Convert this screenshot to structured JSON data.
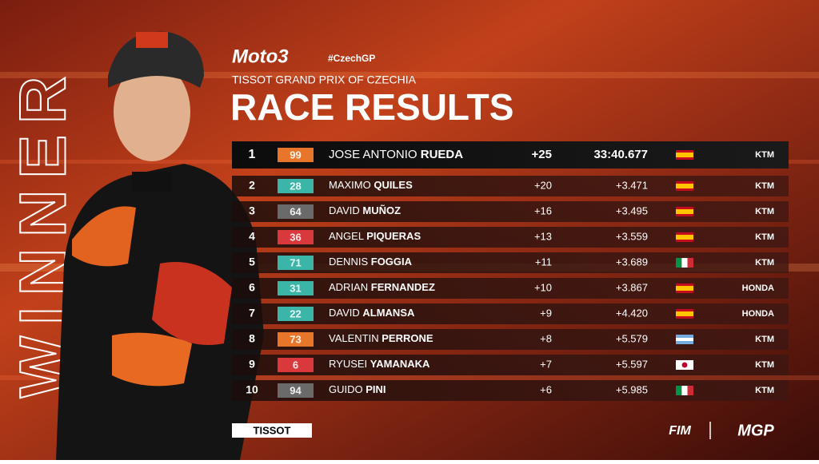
{
  "header": {
    "brand": "Moto3",
    "hashtag": "#CzechGP",
    "subtitle": "TISSOT GRAND PRIX OF CZECHIA",
    "title": "RACE RESULTS"
  },
  "side_label": "WINNER",
  "table": {
    "rows": [
      [
        "1",
        "99",
        "JOSE ANTONIO",
        "RUEDA",
        "+25",
        "33:40.677",
        "KTM"
      ],
      [
        "2",
        "28",
        "MAXIMO",
        "QUILES",
        "+20",
        "+3.471",
        "KTM"
      ],
      [
        "3",
        "64",
        "DAVID",
        "MUÑOZ",
        "+16",
        "+3.495",
        "KTM"
      ],
      [
        "4",
        "36",
        "ANGEL",
        "PIQUERAS",
        "+13",
        "+3.559",
        "KTM"
      ],
      [
        "5",
        "71",
        "DENNIS",
        "FOGGIA",
        "+11",
        "+3.689",
        "KTM"
      ],
      [
        "6",
        "31",
        "ADRIAN",
        "FERNANDEZ",
        "+10",
        "+3.867",
        "HONDA"
      ],
      [
        "7",
        "22",
        "DAVID",
        "ALMANSA",
        "+9",
        "+4.420",
        "HONDA"
      ],
      [
        "8",
        "73",
        "VALENTIN",
        "PERRONE",
        "+8",
        "+5.579",
        "KTM"
      ],
      [
        "9",
        "6",
        "RYUSEI",
        "YAMANAKA",
        "+7",
        "+5.597",
        "KTM"
      ],
      [
        "10",
        "94",
        "GUIDO",
        "PINI",
        "+6",
        "+5.985",
        "KTM"
      ]
    ]
  },
  "footer": {
    "sponsor": "TISSOT",
    "fim": "FIM",
    "series": "MGP"
  }
}
